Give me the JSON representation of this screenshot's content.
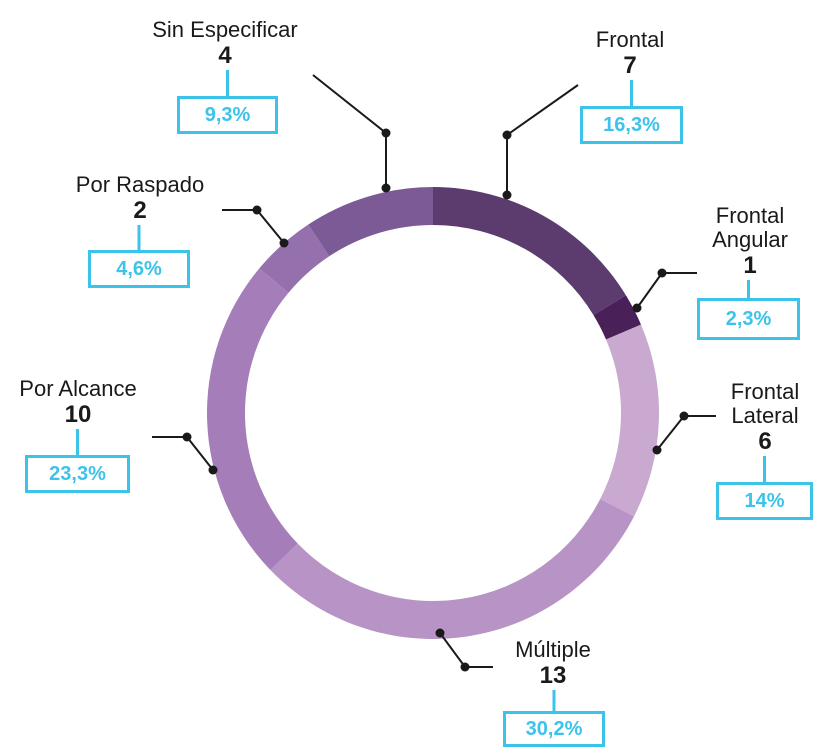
{
  "chart_data": {
    "type": "donut",
    "categories": [
      "Frontal",
      "Frontal Angular",
      "Frontal Lateral",
      "Múltiple",
      "Por Alcance",
      "Por Raspado",
      "Sin Especificar"
    ],
    "values": [
      7,
      1,
      6,
      13,
      10,
      2,
      4
    ],
    "percentages": [
      16.3,
      2.3,
      14,
      30.2,
      23.3,
      4.6,
      9.3
    ],
    "percentage_labels": [
      "16,3%",
      "2,3%",
      "14%",
      "30,2%",
      "23,3%",
      "4,6%",
      "9,3%"
    ],
    "colors": [
      "#5c3b6e",
      "#4a2058",
      "#c9a9d0",
      "#b894c6",
      "#a47db9",
      "#9470ad",
      "#7b5a96"
    ]
  }
}
